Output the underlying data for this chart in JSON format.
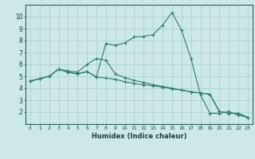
{
  "title": "",
  "xlabel": "Humidex (Indice chaleur)",
  "ylabel": "",
  "xlim": [
    -0.5,
    23.5
  ],
  "ylim": [
    1.0,
    11.0
  ],
  "xticks": [
    0,
    1,
    2,
    3,
    4,
    5,
    6,
    7,
    8,
    9,
    10,
    11,
    12,
    13,
    14,
    15,
    16,
    17,
    18,
    19,
    20,
    21,
    22,
    23
  ],
  "yticks": [
    2,
    3,
    4,
    5,
    6,
    7,
    8,
    9,
    10
  ],
  "background_color": "#cce8e8",
  "grid_color": "#aacccc",
  "line_color": "#2e7d6e",
  "line1_x": [
    0,
    1,
    2,
    3,
    4,
    5,
    6,
    7,
    8,
    9,
    10,
    11,
    12,
    13,
    14,
    15,
    16,
    17,
    18,
    19,
    20,
    21,
    22,
    23
  ],
  "line1_y": [
    4.6,
    4.8,
    5.0,
    5.6,
    5.35,
    5.2,
    5.4,
    4.95,
    7.75,
    7.6,
    7.8,
    8.3,
    8.35,
    8.5,
    9.3,
    10.35,
    8.85,
    6.5,
    3.45,
    1.9,
    1.9,
    2.05,
    1.75,
    1.55
  ],
  "line2_x": [
    0,
    1,
    2,
    3,
    4,
    5,
    6,
    7,
    8,
    9,
    10,
    11,
    12,
    13,
    14,
    15,
    16,
    17,
    18,
    19,
    20,
    21,
    22,
    23
  ],
  "line2_y": [
    4.6,
    4.8,
    5.0,
    5.6,
    5.35,
    5.2,
    5.4,
    4.95,
    4.85,
    4.75,
    4.55,
    4.4,
    4.3,
    4.2,
    4.1,
    3.95,
    3.85,
    3.7,
    3.6,
    3.5,
    2.05,
    1.9,
    1.9,
    1.55
  ],
  "line3_x": [
    0,
    1,
    2,
    3,
    4,
    5,
    6,
    7,
    8,
    9,
    10,
    11,
    12,
    13,
    14,
    15,
    16,
    17,
    18,
    19,
    20,
    21,
    22,
    23
  ],
  "line3_y": [
    4.6,
    4.8,
    5.0,
    5.6,
    5.45,
    5.35,
    6.0,
    6.5,
    6.35,
    5.2,
    4.9,
    4.65,
    4.5,
    4.3,
    4.15,
    4.0,
    3.85,
    3.7,
    3.6,
    3.5,
    2.05,
    1.9,
    1.9,
    1.55
  ]
}
